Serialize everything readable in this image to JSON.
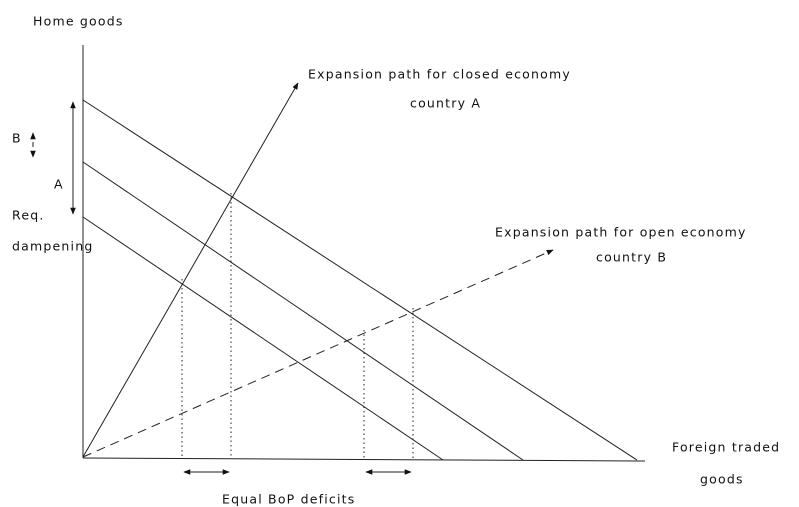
{
  "y_axis_label": "Home goods",
  "closed_path": {
    "line1": "Expansion path for closed economy",
    "line2": "country A"
  },
  "open_path": {
    "line1": "Expansion path for open economy",
    "line2": "country B"
  },
  "x_axis_label": {
    "line1": "Foreign traded",
    "line2": "goods"
  },
  "left_labels": {
    "b": "B",
    "a": "A",
    "req1": "Req.",
    "req2": "dampening"
  },
  "bottom_label": "Equal BoP deficits"
}
